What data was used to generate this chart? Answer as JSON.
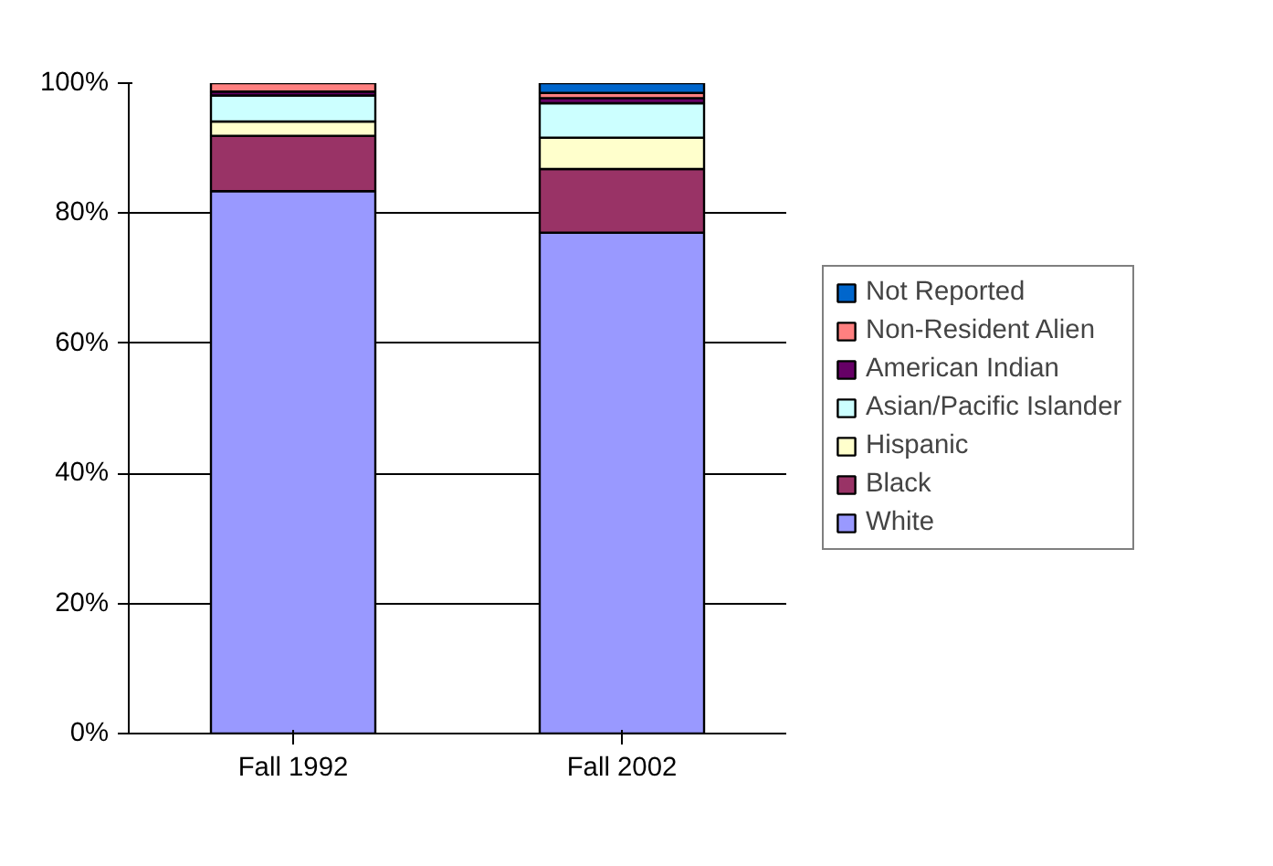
{
  "chart_data": {
    "type": "bar",
    "stacked": true,
    "categories": [
      "Fall 1992",
      "Fall 2002"
    ],
    "series": [
      {
        "name": "White",
        "color": "#9999ff",
        "values": [
          83.4,
          77.0
        ]
      },
      {
        "name": "Black",
        "color": "#993366",
        "values": [
          8.5,
          9.8
        ]
      },
      {
        "name": "Hispanic",
        "color": "#ffffcc",
        "values": [
          2.2,
          4.8
        ]
      },
      {
        "name": "Asian/Pacific Islander",
        "color": "#ccffff",
        "values": [
          4.0,
          5.3
        ]
      },
      {
        "name": "American Indian",
        "color": "#660066",
        "values": [
          0.6,
          0.8
        ]
      },
      {
        "name": "Non-Resident Alien",
        "color": "#ff8080",
        "values": [
          1.3,
          0.8
        ]
      },
      {
        "name": "Not Reported",
        "color": "#0066cc",
        "values": [
          0.0,
          1.5
        ]
      }
    ],
    "ylim": [
      0,
      100
    ],
    "yticks": [
      {
        "value": 0,
        "label": "0%"
      },
      {
        "value": 20,
        "label": "20%"
      },
      {
        "value": 40,
        "label": "40%"
      },
      {
        "value": 60,
        "label": "60%"
      },
      {
        "value": 80,
        "label": "80%"
      },
      {
        "value": 100,
        "label": "100%"
      }
    ],
    "grid": "y",
    "legend": "right"
  }
}
